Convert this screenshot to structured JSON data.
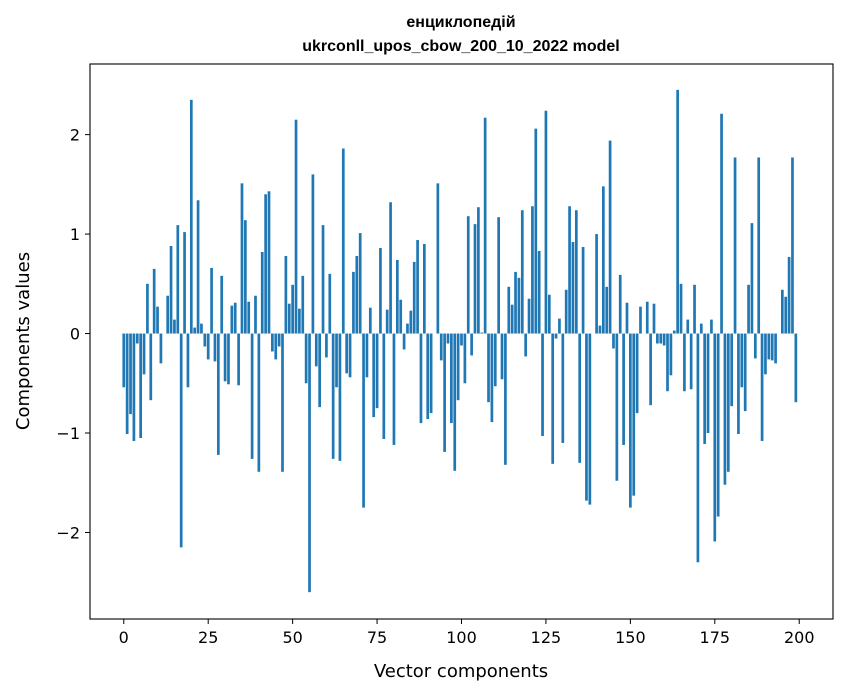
{
  "chart_data": {
    "type": "bar",
    "title": "енциклопедій",
    "subtitle": "ukrconll_upos_cbow_200_10_2022 model",
    "xlabel": "Vector components",
    "ylabel": "Components values",
    "xlim": [
      -10,
      210
    ],
    "ylim": [
      -2.87,
      2.71
    ],
    "xticks": [
      0,
      25,
      50,
      75,
      100,
      125,
      150,
      175,
      200
    ],
    "yticks": [
      -2,
      -1,
      0,
      1,
      2
    ],
    "ytick_labels": [
      "−2",
      "−1",
      "0",
      "1",
      "2"
    ],
    "grid": false,
    "bar_color": "#1f77b4",
    "x": [
      0,
      1,
      2,
      3,
      4,
      5,
      6,
      7,
      8,
      9,
      10,
      11,
      12,
      13,
      14,
      15,
      16,
      17,
      18,
      19,
      20,
      21,
      22,
      23,
      24,
      25,
      26,
      27,
      28,
      29,
      30,
      31,
      32,
      33,
      34,
      35,
      36,
      37,
      38,
      39,
      40,
      41,
      42,
      43,
      44,
      45,
      46,
      47,
      48,
      49,
      50,
      51,
      52,
      53,
      54,
      55,
      56,
      57,
      58,
      59,
      60,
      61,
      62,
      63,
      64,
      65,
      66,
      67,
      68,
      69,
      70,
      71,
      72,
      73,
      74,
      75,
      76,
      77,
      78,
      79,
      80,
      81,
      82,
      83,
      84,
      85,
      86,
      87,
      88,
      89,
      90,
      91,
      92,
      93,
      94,
      95,
      96,
      97,
      98,
      99,
      100,
      101,
      102,
      103,
      104,
      105,
      106,
      107,
      108,
      109,
      110,
      111,
      112,
      113,
      114,
      115,
      116,
      117,
      118,
      119,
      120,
      121,
      122,
      123,
      124,
      125,
      126,
      127,
      128,
      129,
      130,
      131,
      132,
      133,
      134,
      135,
      136,
      137,
      138,
      139,
      140,
      141,
      142,
      143,
      144,
      145,
      146,
      147,
      148,
      149,
      150,
      151,
      152,
      153,
      154,
      155,
      156,
      157,
      158,
      159,
      160,
      161,
      162,
      163,
      164,
      165,
      166,
      167,
      168,
      169,
      170,
      171,
      172,
      173,
      174,
      175,
      176,
      177,
      178,
      179,
      180,
      181,
      182,
      183,
      184,
      185,
      186,
      187,
      188,
      189,
      190,
      191,
      192,
      193,
      194,
      195,
      196,
      197,
      198,
      199
    ],
    "values": [
      -0.54,
      -1.01,
      -0.81,
      -1.08,
      -0.1,
      -1.05,
      -0.41,
      0.5,
      -0.67,
      0.65,
      0.27,
      -0.3,
      0.0,
      0.38,
      0.88,
      0.14,
      1.09,
      -2.15,
      1.02,
      -0.54,
      2.35,
      0.06,
      1.34,
      0.1,
      -0.13,
      -0.26,
      0.66,
      -0.28,
      -1.22,
      0.58,
      -0.48,
      -0.51,
      0.28,
      0.31,
      -0.52,
      1.51,
      1.14,
      0.32,
      -1.26,
      0.38,
      -1.39,
      0.82,
      1.4,
      1.43,
      -0.18,
      -0.26,
      -0.13,
      -1.39,
      0.78,
      0.3,
      0.49,
      2.15,
      0.25,
      0.58,
      -0.5,
      -2.6,
      1.6,
      -0.33,
      -0.74,
      1.09,
      -0.24,
      0.6,
      -1.26,
      -0.54,
      -1.28,
      1.86,
      -0.4,
      -0.44,
      0.62,
      0.78,
      1.01,
      -1.75,
      -0.44,
      0.26,
      -0.84,
      -0.75,
      0.86,
      -1.06,
      0.24,
      1.32,
      -1.12,
      0.74,
      0.34,
      -0.16,
      0.1,
      0.23,
      0.72,
      0.94,
      -0.9,
      0.9,
      -0.86,
      -0.8,
      0.0,
      1.51,
      -0.27,
      -1.19,
      -0.1,
      -0.9,
      -1.38,
      -0.67,
      -0.12,
      -0.5,
      1.18,
      -0.22,
      1.1,
      1.27,
      0.01,
      2.17,
      -0.69,
      -0.89,
      -0.53,
      1.17,
      -0.46,
      -1.32,
      0.47,
      0.29,
      0.62,
      0.56,
      1.24,
      -0.23,
      0.35,
      1.28,
      2.06,
      0.83,
      -1.03,
      2.24,
      0.39,
      -1.31,
      -0.05,
      0.15,
      -1.1,
      0.44,
      1.28,
      0.92,
      1.24,
      -1.3,
      0.87,
      -1.68,
      -1.72,
      0.0,
      1.0,
      0.08,
      1.48,
      0.47,
      1.94,
      -0.15,
      -1.48,
      0.59,
      -1.12,
      0.31,
      -1.75,
      -1.63,
      -0.8,
      0.27,
      0.0,
      0.32,
      -0.72,
      0.3,
      -0.1,
      -0.1,
      -0.12,
      -0.58,
      -0.42,
      0.03,
      2.45,
      0.5,
      -0.58,
      0.14,
      -0.56,
      0.49,
      -2.3,
      0.1,
      -1.11,
      -1.0,
      0.14,
      -2.09,
      -1.84,
      2.21,
      -1.52,
      -1.39,
      -0.73,
      1.77,
      -1.01,
      -0.54,
      -0.78,
      0.49,
      1.11,
      -0.25,
      1.77,
      -1.08,
      -0.41,
      -0.26,
      -0.27,
      -0.3,
      0.0,
      0.44,
      0.37,
      0.77,
      1.77,
      -0.69
    ]
  }
}
